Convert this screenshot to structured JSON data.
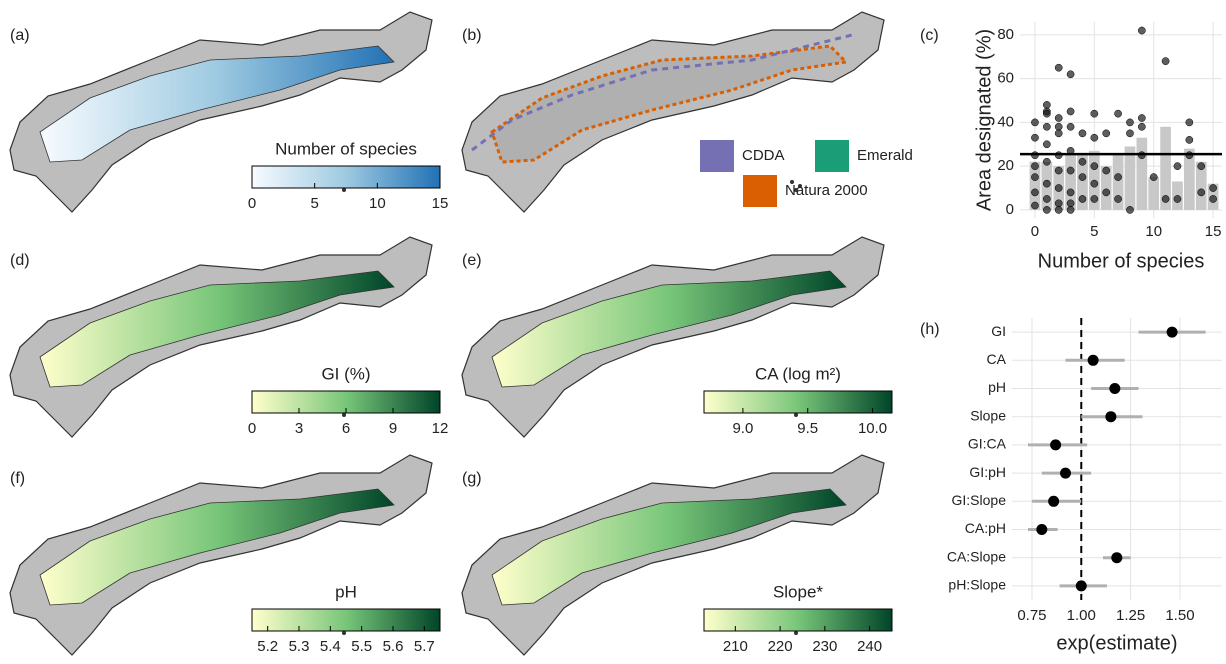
{
  "chart_data": [
    {
      "type": "map",
      "label": "(a)",
      "colorbar_title": "Number of species",
      "colorbar_lim": [
        0,
        15
      ],
      "colorbar_ticks": [
        0,
        5,
        10,
        15
      ],
      "colors": [
        "#f7fbff",
        "#9ecae1",
        "#2171b5"
      ]
    },
    {
      "type": "map",
      "label": "(b)",
      "legend": [
        {
          "name": "CDDA",
          "color": "#7570b3"
        },
        {
          "name": "Emerald",
          "color": "#1b9e77"
        },
        {
          "name": "Natura 2000",
          "color": "#d95f02"
        }
      ]
    },
    {
      "type": "scatter_bar",
      "label": "(c)",
      "x_label": "Number of species",
      "y_label": "Area designated (%)",
      "xlim": [
        -1.26,
        15.75
      ],
      "ylim": [
        -3.7,
        85.9
      ],
      "xticks": [
        0,
        5,
        10,
        15
      ],
      "yticks": [
        0,
        20,
        40,
        60,
        80
      ],
      "grid": true,
      "bars": {
        "x": [
          0,
          1,
          2,
          3,
          4,
          5,
          6,
          7,
          8,
          9,
          10,
          11,
          12,
          13,
          14,
          15
        ],
        "values": [
          22,
          22,
          20,
          26,
          25,
          27,
          20,
          25,
          29,
          33,
          15,
          38,
          13,
          28,
          22,
          12
        ],
        "color": "#c8c8c8"
      },
      "points": {
        "x": [
          0,
          0,
          0,
          0,
          0,
          0,
          0,
          1,
          1,
          1,
          1,
          1,
          1,
          1,
          1,
          1,
          2,
          2,
          2,
          2,
          2,
          2,
          2,
          2,
          2,
          3,
          3,
          3,
          3,
          3,
          3,
          3,
          3,
          4,
          4,
          4,
          4,
          5,
          5,
          5,
          5,
          5,
          6,
          6,
          6,
          7,
          7,
          7,
          8,
          8,
          8,
          9,
          9,
          9,
          9,
          10,
          11,
          11,
          12,
          12,
          13,
          13,
          13,
          14,
          14,
          15,
          15
        ],
        "y": [
          40,
          33,
          20,
          8,
          2,
          25,
          15,
          48,
          45,
          38,
          30,
          22,
          12,
          5,
          0,
          44,
          65,
          42,
          38,
          35,
          25,
          18,
          10,
          3,
          0,
          62,
          45,
          38,
          27,
          18,
          8,
          3,
          0,
          35,
          22,
          15,
          5,
          44,
          33,
          20,
          12,
          5,
          35,
          18,
          8,
          44,
          15,
          5,
          40,
          35,
          0,
          82,
          42,
          38,
          25,
          15,
          68,
          5,
          20,
          5,
          40,
          32,
          25,
          20,
          8,
          10,
          5
        ],
        "color": "#1a1a1a"
      },
      "hline": 25.5,
      "hline_color": "#000000"
    },
    {
      "type": "map",
      "label": "(d)",
      "colorbar_title": "GI (%)",
      "colorbar_lim": [
        0,
        12
      ],
      "colorbar_ticks": [
        0,
        3,
        6,
        9,
        12
      ],
      "colors": [
        "#ffffcc",
        "#78c679",
        "#004529"
      ]
    },
    {
      "type": "map",
      "label": "(e)",
      "colorbar_title": "CA (log  m²)",
      "colorbar_lim": [
        8.7,
        10.15
      ],
      "colorbar_ticks": [
        {
          "value": 9,
          "label": "9.0"
        },
        9.5,
        {
          "value": 10,
          "label": "10.0"
        }
      ],
      "colors": [
        "#ffffcc",
        "#78c679",
        "#004529"
      ]
    },
    {
      "type": "map",
      "label": "(f)",
      "colorbar_title": "pH",
      "colorbar_lim": [
        5.15,
        5.75
      ],
      "colorbar_ticks": [
        5.2,
        5.3,
        5.4,
        5.5,
        5.6,
        5.7
      ],
      "colors": [
        "#ffffcc",
        "#78c679",
        "#004529"
      ]
    },
    {
      "type": "map",
      "label": "(g)",
      "colorbar_title": "Slope*",
      "colorbar_lim": [
        203,
        245
      ],
      "colorbar_ticks": [
        210,
        220,
        230,
        240
      ],
      "colors": [
        "#ffffcc",
        "#78c679",
        "#004529"
      ]
    },
    {
      "type": "dot_whisker",
      "label": "(h)",
      "x_label": "exp(estimate)",
      "categories": [
        "GI",
        "CA",
        "pH",
        "Slope",
        "GI:CA",
        "GI:pH",
        "GI:Slope",
        "CA:pH",
        "CA:Slope",
        "pH:Slope"
      ],
      "values": [
        1.46,
        1.06,
        1.17,
        1.15,
        0.87,
        0.92,
        0.86,
        0.8,
        1.18,
        1.0
      ],
      "lower": [
        1.29,
        0.92,
        1.05,
        1.0,
        0.73,
        0.8,
        0.75,
        0.73,
        1.11,
        0.89
      ],
      "upper": [
        1.63,
        1.22,
        1.29,
        1.31,
        1.03,
        1.05,
        1.0,
        0.88,
        1.25,
        1.13
      ],
      "xlim": [
        0.649,
        1.713
      ],
      "xticks": [
        0.75,
        {
          "value": 1,
          "label": "1.00"
        },
        1.25,
        {
          "value": 1.5,
          "label": "1.50"
        }
      ],
      "ref_line": 1,
      "grid": true,
      "color": "#000000",
      "whisker_color": "#b0b0b0"
    }
  ]
}
